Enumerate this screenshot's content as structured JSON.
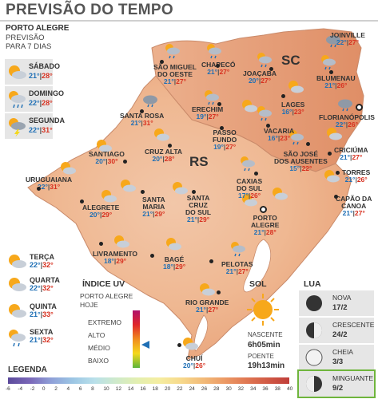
{
  "title": "PREVISÃO DO TEMPO",
  "location": {
    "city": "PORTO ALEGRE",
    "line1": "PREVISÃO",
    "line2": "PARA 7 DIAS"
  },
  "days_top": [
    {
      "day": "SÁBADO",
      "min": "21°",
      "max": "28°",
      "icon": "sun-cloud-icon"
    },
    {
      "day": "DOMINGO",
      "min": "22°",
      "max": "28°",
      "icon": "rain-sun-icon"
    },
    {
      "day": "SEGUNDA",
      "min": "22°",
      "max": "31°",
      "icon": "storm-sun-icon"
    }
  ],
  "days_bottom": [
    {
      "day": "TERÇA",
      "min": "22°",
      "max": "32°"
    },
    {
      "day": "QUARTA",
      "min": "22°",
      "max": "32°"
    },
    {
      "day": "QUINTA",
      "min": "21°",
      "max": "33°"
    },
    {
      "day": "SEXTA",
      "min": "21°",
      "max": "32°"
    }
  ],
  "states": {
    "sc": "SC",
    "rs": "RS"
  },
  "cities": [
    {
      "name": "JOINVILLE",
      "min": "22°",
      "max": "27°"
    },
    {
      "name": "SÃO MIGUEL\nDO OESTE",
      "min": "21°",
      "max": "27°"
    },
    {
      "name": "CHAPECÓ",
      "min": "21°",
      "max": "27°"
    },
    {
      "name": "JOAÇABA",
      "min": "20°",
      "max": "27°"
    },
    {
      "name": "BLUMENAU",
      "min": "21°",
      "max": "26°"
    },
    {
      "name": "LAGES",
      "min": "16°",
      "max": "23°"
    },
    {
      "name": "FLORIANÓPOLIS",
      "min": "22°",
      "max": "26°"
    },
    {
      "name": "SANTA ROSA",
      "min": "21°",
      "max": "31°"
    },
    {
      "name": "ERECHIM",
      "min": "19°",
      "max": "27°"
    },
    {
      "name": "PASSO\nFUNDO",
      "min": "19°",
      "max": "27°"
    },
    {
      "name": "VACARIA",
      "min": "16°",
      "max": "23°"
    },
    {
      "name": "SÃO JOSÉ\nDOS AUSENTES",
      "min": "15°",
      "max": "22°"
    },
    {
      "name": "CRICIÚMA",
      "min": "21°",
      "max": "27°"
    },
    {
      "name": "SANTIAGO",
      "min": "20°",
      "max": "30°"
    },
    {
      "name": "CRUZ ALTA",
      "min": "20°",
      "max": "28°"
    },
    {
      "name": "TORRES",
      "min": "21°",
      "max": "26°"
    },
    {
      "name": "URUGUAIANA",
      "min": "22°",
      "max": "31°"
    },
    {
      "name": "CAXIAS\nDO SUL",
      "min": "17°",
      "max": "26°"
    },
    {
      "name": "CAPÃO DA\nCANOA",
      "min": "21°",
      "max": "27°"
    },
    {
      "name": "ALEGRETE",
      "min": "20°",
      "max": "29°"
    },
    {
      "name": "SANTA\nMARIA",
      "min": "21°",
      "max": "29°"
    },
    {
      "name": "SANTA\nCRUZ\nDO SUL",
      "min": "21°",
      "max": "29°"
    },
    {
      "name": "PORTO\nALEGRE",
      "min": "21°",
      "max": "28°"
    },
    {
      "name": "LIVRAMENTO",
      "min": "18°",
      "max": "29°"
    },
    {
      "name": "BAGÉ",
      "min": "18°",
      "max": "29°"
    },
    {
      "name": "PELOTAS",
      "min": "21°",
      "max": "27°"
    },
    {
      "name": "RIO GRANDE",
      "min": "21°",
      "max": "27°"
    },
    {
      "name": "CHUÍ",
      "min": "20°",
      "max": "26°"
    }
  ],
  "uv": {
    "title": "ÍNDICE UV",
    "sub1": "PORTO ALEGRE",
    "sub2": "HOJE",
    "levels": [
      "EXTREMO",
      "ALTO",
      "MÉDIO",
      "BAIXO"
    ],
    "current": "MÉDIO"
  },
  "sol": {
    "title": "SOL",
    "rise_label": "NASCENTE",
    "rise": "6h05min",
    "set_label": "POENTE",
    "set": "19h13min"
  },
  "lua": {
    "title": "LUA",
    "phases": [
      {
        "name": "NOVA",
        "date": "17/2"
      },
      {
        "name": "CRESCENTE",
        "date": "24/2"
      },
      {
        "name": "CHEIA",
        "date": "3/3"
      },
      {
        "name": "MINGUANTE",
        "date": "9/2"
      }
    ]
  },
  "legend": {
    "title": "LEGENDA",
    "ticks": [
      "-6",
      "-4",
      "-2",
      "0",
      "2",
      "4",
      "6",
      "8",
      "10",
      "12",
      "14",
      "16",
      "18",
      "20",
      "22",
      "24",
      "26",
      "28",
      "30",
      "32",
      "34",
      "36",
      "38",
      "40"
    ]
  }
}
